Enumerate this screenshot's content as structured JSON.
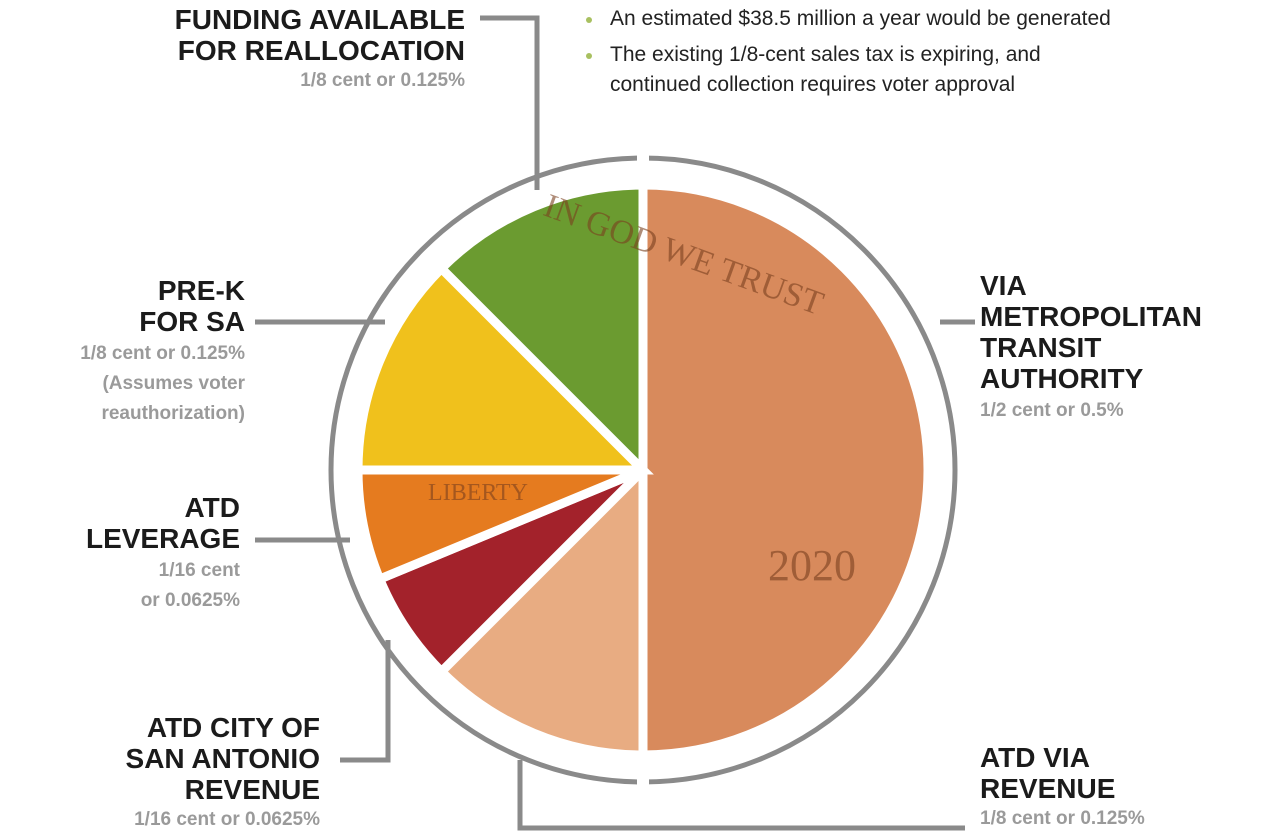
{
  "chart_data": {
    "type": "pie",
    "bullets": [
      "An estimated $38.5 million a year would be generated",
      "The existing 1/8-cent sales tax is expiring, and\ncontinued collection requires voter approval"
    ],
    "categories": [
      "VIA\nMETROPOLITAN\nTRANSIT\nAUTHORITY",
      "ATD VIA\nREVENUE",
      "ATD CITY OF\nSAN ANTONIO\nREVENUE",
      "ATD\nLEVERAGE",
      "PRE-K\nFOR SA",
      "FUNDING AVAILABLE\nFOR REALLOCATION"
    ],
    "values": [
      0.5,
      0.125,
      0.0625,
      0.0625,
      0.125,
      0.125
    ],
    "value_labels": [
      "1/2 cent or 0.5%",
      "1/8 cent or 0.125%",
      "1/16 cent or 0.0625%",
      "1/16 cent\nor 0.0625%",
      "1/8 cent or 0.125%",
      "1/8 cent or 0.125%"
    ],
    "colors": [
      "#d88a5c",
      "#e8ac82",
      "#a3222b",
      "#e57b1f",
      "#f0c11c",
      "#6b9b30"
    ],
    "annotations": [
      {
        "text": "(Assumes voter\nreauthorization)"
      }
    ],
    "coin_text": [
      "IN GOD WE TRUST",
      "LIBERTY",
      "2020"
    ]
  }
}
